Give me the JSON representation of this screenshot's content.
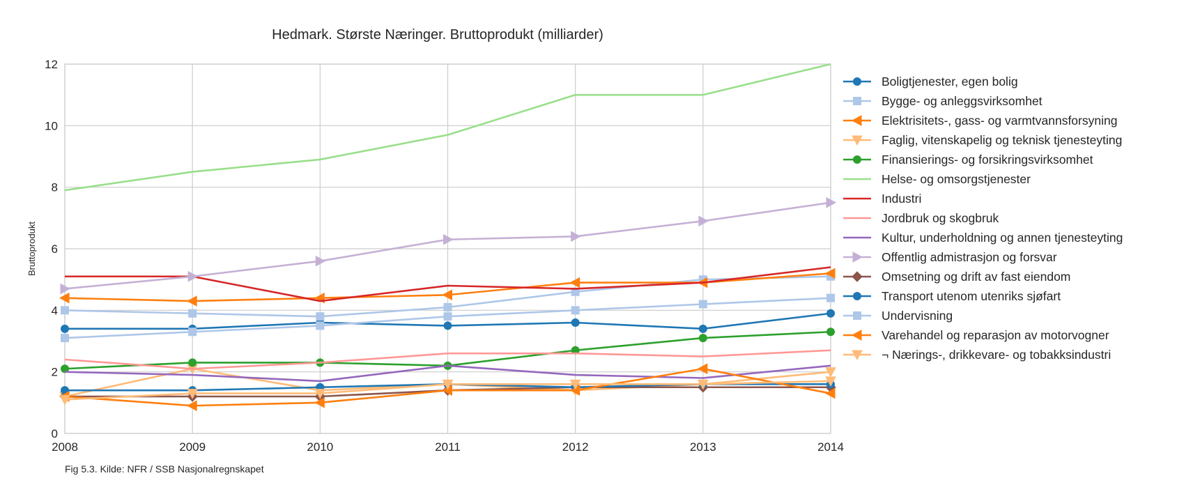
{
  "caption": "Fig 5.3. Kilde: NFR / SSB Nasjonalregnskapet",
  "chart_data": {
    "type": "line",
    "title": "Hedmark. Største Næringer. Bruttoprodukt (milliarder)",
    "xlabel": "",
    "ylabel": "Bruttoprodukt",
    "x": [
      2008,
      2009,
      2010,
      2011,
      2012,
      2013,
      2014
    ],
    "xticks": [
      "2008",
      "2009",
      "2010",
      "2011",
      "2012",
      "2013",
      "2014"
    ],
    "ylim": [
      0,
      12
    ],
    "yticks": [
      "0",
      "2",
      "4",
      "6",
      "8",
      "10",
      "12"
    ],
    "grid": true,
    "legend_position": "right",
    "series": [
      {
        "name": "Boligtjenester, egen bolig",
        "color": "#1f77b4",
        "marker": "circle",
        "values": [
          3.4,
          3.4,
          3.6,
          3.5,
          3.6,
          3.4,
          3.9
        ]
      },
      {
        "name": "Bygge- og anleggsvirksomhet",
        "color": "#aec7e8",
        "marker": "square",
        "values": [
          4.0,
          3.9,
          3.8,
          4.1,
          4.6,
          5.0,
          5.1
        ]
      },
      {
        "name": "Elektrisitets-, gass- og varmtvannsforsyning",
        "color": "#ff7f0e",
        "marker": "triangle-left",
        "values": [
          4.4,
          4.3,
          4.4,
          4.5,
          4.9,
          4.9,
          5.2
        ]
      },
      {
        "name": "Faglig, vitenskapelig og teknisk tjenesteyting",
        "color": "#ffbb78",
        "marker": "triangle-down",
        "values": [
          1.2,
          2.1,
          1.4,
          1.6,
          1.4,
          1.6,
          2.0
        ]
      },
      {
        "name": "Finansierings- og forsikringsvirksomhet",
        "color": "#2ca02c",
        "marker": "circle",
        "values": [
          2.1,
          2.3,
          2.3,
          2.2,
          2.7,
          3.1,
          3.3
        ]
      },
      {
        "name": "Helse- og omsorgstjenester",
        "color": "#98df8a",
        "marker": "none",
        "values": [
          7.9,
          8.5,
          8.9,
          9.7,
          11.0,
          11.0,
          12.0
        ]
      },
      {
        "name": "Industri",
        "color": "#d62728",
        "marker": "none",
        "values": [
          5.1,
          5.1,
          4.3,
          4.8,
          4.7,
          4.9,
          5.4
        ]
      },
      {
        "name": "Jordbruk og skogbruk",
        "color": "#ff9896",
        "marker": "none",
        "values": [
          2.4,
          2.1,
          2.3,
          2.6,
          2.6,
          2.5,
          2.7
        ]
      },
      {
        "name": "Kultur, underholdning og annen tjenesteyting",
        "color": "#9467bd",
        "marker": "none",
        "values": [
          2.0,
          1.9,
          1.7,
          2.2,
          1.9,
          1.8,
          2.2
        ]
      },
      {
        "name": "Offentlig admistrasjon og forsvar",
        "color": "#c5b0d5",
        "marker": "triangle-right",
        "values": [
          4.7,
          5.1,
          5.6,
          6.3,
          6.4,
          6.9,
          7.5
        ]
      },
      {
        "name": "Omsetning og drift av fast eiendom",
        "color": "#8c564b",
        "marker": "diamond",
        "values": [
          1.2,
          1.2,
          1.2,
          1.4,
          1.5,
          1.5,
          1.5
        ]
      },
      {
        "name": "Transport utenom utenriks sjøfart",
        "color": "#1f77b4",
        "marker": "circle",
        "values": [
          1.4,
          1.4,
          1.5,
          1.6,
          1.5,
          1.6,
          1.6
        ]
      },
      {
        "name": "Undervisning",
        "color": "#aec7e8",
        "marker": "square",
        "values": [
          3.1,
          3.3,
          3.5,
          3.8,
          4.0,
          4.2,
          4.4
        ]
      },
      {
        "name": "Varehandel og reparasjon av motorvogner",
        "color": "#ff7f0e",
        "marker": "triangle-left",
        "values": [
          1.2,
          0.9,
          1.0,
          1.4,
          1.4,
          2.1,
          1.3
        ]
      },
      {
        "name": "¬ Nærings-, drikkevare- og tobakksindustri",
        "color": "#ffbb78",
        "marker": "triangle-down",
        "values": [
          1.1,
          1.3,
          1.3,
          1.6,
          1.6,
          1.6,
          1.7
        ]
      }
    ]
  }
}
